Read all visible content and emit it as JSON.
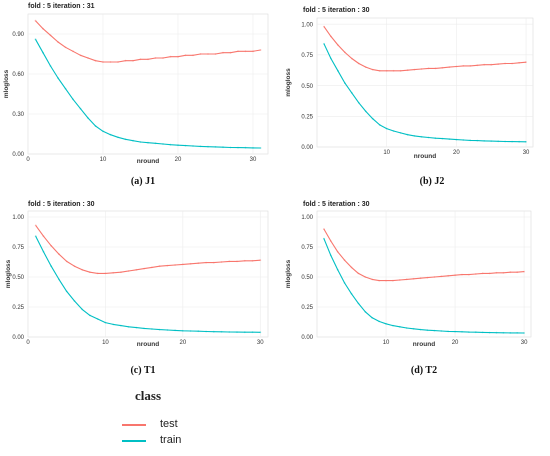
{
  "colors": {
    "test": "#F8766D",
    "train": "#00BFC4"
  },
  "legend": {
    "title": "class",
    "items": [
      {
        "label": "test",
        "color": "#F8766D"
      },
      {
        "label": "train",
        "color": "#00BFC4"
      }
    ]
  },
  "chart_data": [
    {
      "type": "line",
      "title": "fold : 5 iteration : 31",
      "caption": "(a) J1",
      "xlabel": "nround",
      "ylabel": "mlogloss",
      "xlim": [
        0,
        32
      ],
      "ylim": [
        0,
        1.05
      ],
      "xticks": [
        0,
        10,
        20,
        30
      ],
      "yticks": [
        0.0,
        0.3,
        0.6,
        0.9
      ],
      "ytick_labels": [
        "0.00",
        "0.30",
        "0.60",
        "0.90"
      ],
      "x": [
        1,
        2,
        3,
        4,
        5,
        6,
        7,
        8,
        9,
        10,
        11,
        12,
        13,
        14,
        15,
        16,
        17,
        18,
        19,
        20,
        21,
        22,
        23,
        24,
        25,
        26,
        27,
        28,
        29,
        30,
        31
      ],
      "series": [
        {
          "name": "test",
          "values": [
            1.0,
            0.94,
            0.89,
            0.84,
            0.8,
            0.77,
            0.74,
            0.72,
            0.7,
            0.69,
            0.69,
            0.69,
            0.7,
            0.7,
            0.71,
            0.71,
            0.72,
            0.72,
            0.73,
            0.73,
            0.74,
            0.74,
            0.75,
            0.75,
            0.75,
            0.76,
            0.76,
            0.77,
            0.77,
            0.77,
            0.78
          ]
        },
        {
          "name": "train",
          "values": [
            0.86,
            0.76,
            0.66,
            0.57,
            0.49,
            0.41,
            0.34,
            0.27,
            0.21,
            0.17,
            0.145,
            0.125,
            0.11,
            0.1,
            0.09,
            0.085,
            0.08,
            0.075,
            0.07,
            0.066,
            0.063,
            0.06,
            0.057,
            0.055,
            0.053,
            0.051,
            0.049,
            0.048,
            0.047,
            0.046,
            0.045
          ]
        }
      ]
    },
    {
      "type": "line",
      "title": "fold : 5 iteration : 30",
      "caption": "(b) J2",
      "xlabel": "nround",
      "ylabel": "mlogloss",
      "xlim": [
        0,
        31
      ],
      "ylim": [
        0,
        1.05
      ],
      "xticks": [
        10,
        20,
        30
      ],
      "yticks": [
        0.0,
        0.25,
        0.5,
        0.75,
        1.0
      ],
      "ytick_labels": [
        "0.00",
        "0.25",
        "0.50",
        "0.75",
        "1.00"
      ],
      "x": [
        1,
        2,
        3,
        4,
        5,
        6,
        7,
        8,
        9,
        10,
        11,
        12,
        13,
        14,
        15,
        16,
        17,
        18,
        19,
        20,
        21,
        22,
        23,
        24,
        25,
        26,
        27,
        28,
        29,
        30
      ],
      "series": [
        {
          "name": "test",
          "values": [
            0.98,
            0.9,
            0.83,
            0.77,
            0.72,
            0.68,
            0.65,
            0.63,
            0.62,
            0.62,
            0.62,
            0.62,
            0.625,
            0.63,
            0.635,
            0.64,
            0.64,
            0.645,
            0.65,
            0.655,
            0.66,
            0.66,
            0.665,
            0.67,
            0.67,
            0.675,
            0.68,
            0.68,
            0.685,
            0.69
          ]
        },
        {
          "name": "train",
          "values": [
            0.84,
            0.72,
            0.62,
            0.52,
            0.44,
            0.36,
            0.29,
            0.23,
            0.18,
            0.15,
            0.13,
            0.115,
            0.1,
            0.09,
            0.083,
            0.077,
            0.072,
            0.068,
            0.064,
            0.06,
            0.057,
            0.054,
            0.052,
            0.05,
            0.048,
            0.046,
            0.045,
            0.044,
            0.043,
            0.042
          ]
        }
      ]
    },
    {
      "type": "line",
      "title": "fold : 5 iteration : 30",
      "caption": "(c) T1",
      "xlabel": "nround",
      "ylabel": "mlogloss",
      "xlim": [
        0,
        31
      ],
      "ylim": [
        0,
        1.05
      ],
      "xticks": [
        0,
        10,
        20,
        30
      ],
      "yticks": [
        0.0,
        0.25,
        0.5,
        0.75,
        1.0
      ],
      "ytick_labels": [
        "0.00",
        "0.25",
        "0.50",
        "0.75",
        "1.00"
      ],
      "x": [
        1,
        2,
        3,
        4,
        5,
        6,
        7,
        8,
        9,
        10,
        11,
        12,
        13,
        14,
        15,
        16,
        17,
        18,
        19,
        20,
        21,
        22,
        23,
        24,
        25,
        26,
        27,
        28,
        29,
        30
      ],
      "series": [
        {
          "name": "test",
          "values": [
            0.93,
            0.84,
            0.76,
            0.69,
            0.63,
            0.59,
            0.56,
            0.54,
            0.53,
            0.53,
            0.535,
            0.54,
            0.55,
            0.56,
            0.57,
            0.58,
            0.59,
            0.595,
            0.6,
            0.605,
            0.61,
            0.615,
            0.62,
            0.62,
            0.625,
            0.63,
            0.63,
            0.635,
            0.635,
            0.64
          ]
        },
        {
          "name": "train",
          "values": [
            0.84,
            0.71,
            0.59,
            0.48,
            0.38,
            0.3,
            0.23,
            0.18,
            0.15,
            0.12,
            0.105,
            0.095,
            0.085,
            0.078,
            0.072,
            0.067,
            0.062,
            0.058,
            0.055,
            0.052,
            0.05,
            0.048,
            0.046,
            0.044,
            0.043,
            0.042,
            0.041,
            0.04,
            0.04,
            0.039
          ]
        }
      ]
    },
    {
      "type": "line",
      "title": "fold : 5 iteration : 30",
      "caption": "(d) T2",
      "xlabel": "nround",
      "ylabel": "mlogloss",
      "xlim": [
        0,
        31
      ],
      "ylim": [
        0,
        1.05
      ],
      "xticks": [
        10,
        20,
        30
      ],
      "yticks": [
        0.0,
        0.25,
        0.5,
        0.75,
        1.0
      ],
      "ytick_labels": [
        "0.00",
        "0.25",
        "0.50",
        "0.75",
        "1.00"
      ],
      "x": [
        1,
        2,
        3,
        4,
        5,
        6,
        7,
        8,
        9,
        10,
        11,
        12,
        13,
        14,
        15,
        16,
        17,
        18,
        19,
        20,
        21,
        22,
        23,
        24,
        25,
        26,
        27,
        28,
        29,
        30
      ],
      "series": [
        {
          "name": "test",
          "values": [
            0.9,
            0.8,
            0.71,
            0.64,
            0.58,
            0.53,
            0.5,
            0.48,
            0.47,
            0.47,
            0.47,
            0.475,
            0.48,
            0.485,
            0.49,
            0.495,
            0.5,
            0.505,
            0.51,
            0.515,
            0.52,
            0.52,
            0.525,
            0.53,
            0.53,
            0.535,
            0.535,
            0.54,
            0.54,
            0.545
          ]
        },
        {
          "name": "train",
          "values": [
            0.82,
            0.68,
            0.56,
            0.45,
            0.36,
            0.28,
            0.21,
            0.16,
            0.13,
            0.11,
            0.095,
            0.085,
            0.075,
            0.068,
            0.062,
            0.057,
            0.053,
            0.05,
            0.047,
            0.045,
            0.043,
            0.041,
            0.04,
            0.038,
            0.037,
            0.036,
            0.035,
            0.034,
            0.034,
            0.033
          ]
        }
      ]
    }
  ]
}
